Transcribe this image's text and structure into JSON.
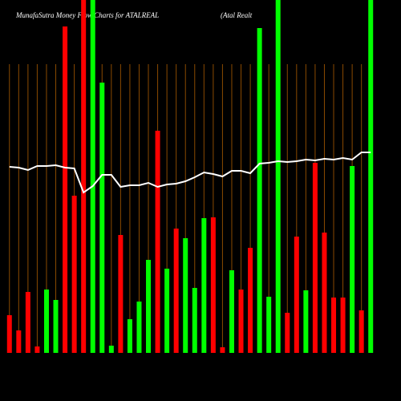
{
  "chart_data": {
    "type": "bar",
    "title": "MunafaSutra  Money Flow  Charts for ATALREAL",
    "subtitle": "(Atal Realt",
    "categories": [
      null,
      null,
      null,
      null,
      null,
      null,
      null,
      null,
      null,
      null,
      null,
      null,
      null,
      null,
      null,
      null,
      null,
      null,
      null,
      null,
      null,
      null,
      null,
      null,
      null,
      null,
      null,
      null,
      null,
      null,
      null,
      null,
      null,
      null,
      null,
      null,
      null,
      null,
      null,
      null
    ],
    "values": [
      47,
      28,
      76,
      8,
      79,
      66,
      407,
      196,
      440,
      440,
      337,
      9,
      147,
      42,
      64,
      116,
      277,
      105,
      155,
      143,
      81,
      168,
      169,
      7,
      103,
      79,
      131,
      405,
      70,
      440,
      50,
      145,
      78,
      237,
      150,
      69,
      69,
      233,
      53,
      440
    ],
    "bar_colors": [
      "#ff0000",
      "#ff0000",
      "#ff0000",
      "#ff0000",
      "#00ff00",
      "#00ff00",
      "#ff0000",
      "#ff0000",
      "#ff0000",
      "#00ff00",
      "#00ff00",
      "#00ff00",
      "#ff0000",
      "#00ff00",
      "#00ff00",
      "#00ff00",
      "#ff0000",
      "#00ff00",
      "#ff0000",
      "#00ff00",
      "#00ff00",
      "#00ff00",
      "#ff0000",
      "#ff0000",
      "#00ff00",
      "#ff0000",
      "#ff0000",
      "#00ff00",
      "#00ff00",
      "#00ff00",
      "#ff0000",
      "#ff0000",
      "#00ff00",
      "#ff0000",
      "#ff0000",
      "#ff0000",
      "#ff0000",
      "#00ff00",
      "#ff0000",
      "#00ff00"
    ],
    "line": {
      "color": "#ffffff",
      "values": [
        232,
        231,
        228,
        233,
        233,
        234,
        231,
        230,
        200,
        208,
        222,
        222,
        207,
        209,
        209,
        212,
        207,
        210,
        211,
        214,
        219,
        225,
        223,
        220,
        227,
        227,
        224,
        236,
        237,
        239,
        238,
        239,
        241,
        240,
        242,
        241,
        243,
        241,
        250,
        250
      ]
    },
    "ylim": [
      0,
      440
    ]
  }
}
